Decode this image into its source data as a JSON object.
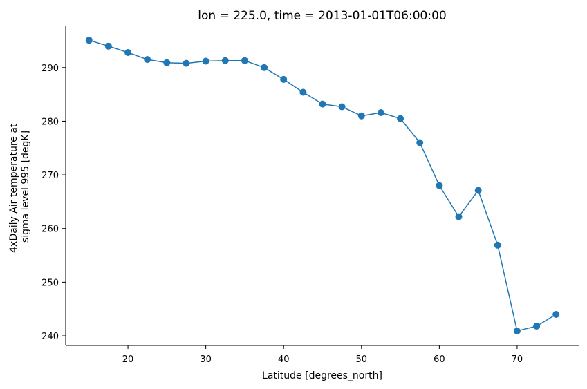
{
  "chart_data": {
    "type": "line",
    "title": "lon = 225.0, time = 2013-01-01T06:00:00",
    "xlabel": "Latitude [degrees_north]",
    "ylabel_lines": [
      "4xDaily Air temperature at",
      "sigma level 995 [degK]"
    ],
    "xlim": [
      12.0,
      78.0
    ],
    "ylim": [
      238.2,
      297.7
    ],
    "xticks": [
      20,
      30,
      40,
      50,
      60,
      70
    ],
    "yticks": [
      240,
      250,
      260,
      270,
      280,
      290
    ],
    "grid": false,
    "line_color": "#1f77b4",
    "marker": "circle",
    "series": [
      {
        "x": [
          15,
          17.5,
          20,
          22.5,
          25,
          27.5,
          30,
          32.5,
          35,
          37.5,
          40,
          42.5,
          45,
          47.5,
          50,
          52.5,
          55,
          57.5,
          60,
          62.5,
          65,
          67.5,
          70,
          72.5,
          75
        ],
        "y": [
          295.1,
          294.0,
          292.8,
          291.5,
          290.9,
          290.8,
          291.2,
          291.3,
          291.3,
          290.0,
          287.8,
          285.4,
          283.2,
          282.7,
          281.0,
          281.6,
          280.5,
          276.0,
          268.0,
          262.2,
          267.1,
          256.9,
          240.9,
          241.8,
          244.0
        ]
      }
    ]
  }
}
